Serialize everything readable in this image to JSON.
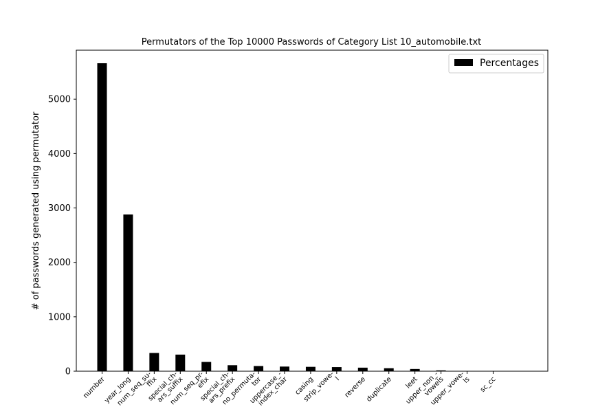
{
  "chart_data": {
    "type": "bar",
    "title": "Permutators of the Top 10000 Passwords of Category List 10_automobile.txt",
    "xlabel": "",
    "ylabel": "# of passwords generated using permutator",
    "categories": [
      [
        "number"
      ],
      [
        "year_long"
      ],
      [
        "num_seq_su-",
        "ffix"
      ],
      [
        "special_ch-",
        "ars_suffix"
      ],
      [
        "num_seq_pr-",
        "efix"
      ],
      [
        "special_ch-",
        "ars_prefix"
      ],
      [
        "no_permuta-",
        "tor"
      ],
      [
        "uppercase_-",
        "index_char"
      ],
      [
        "casing"
      ],
      [
        "strip_vowe-",
        "l"
      ],
      [
        "reverse"
      ],
      [
        "duplicate"
      ],
      [
        "leet"
      ],
      [
        "upper_non_-",
        "vowels"
      ],
      [
        "upper_vowe-",
        "ls"
      ],
      [
        "sc_cc"
      ]
    ],
    "series": [
      {
        "name": "Percentages",
        "values": [
          5660,
          2880,
          335,
          305,
          170,
          110,
          95,
          85,
          80,
          75,
          65,
          55,
          40,
          15,
          5,
          3
        ]
      }
    ],
    "ylim": [
      0,
      5900
    ],
    "yticks": [
      0,
      1000,
      2000,
      3000,
      4000,
      5000
    ],
    "bar_color": "#000000",
    "grid": false,
    "legend_position": "top-right"
  }
}
